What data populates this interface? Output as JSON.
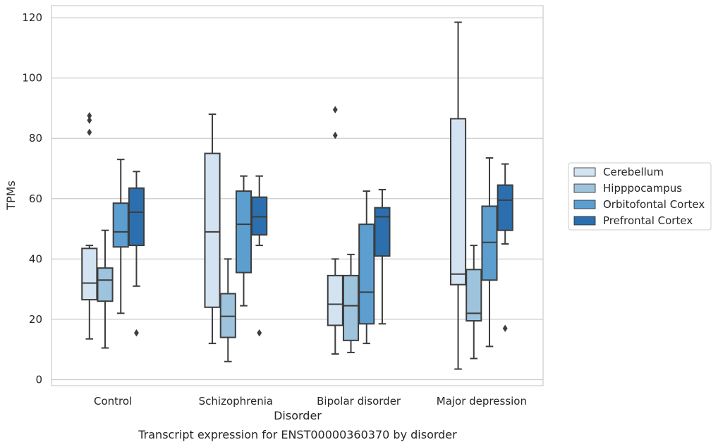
{
  "chart_data": {
    "type": "boxplot",
    "caption": "Transcript expression for ENST00000360370 by disorder",
    "xlabel": "Disorder",
    "ylabel": "TPMs",
    "ylim": [
      -2,
      124
    ],
    "yticks": [
      0,
      20,
      40,
      60,
      80,
      100,
      120
    ],
    "grid": "horizontal",
    "legend_position": "right",
    "categories": [
      "Control",
      "Schizophrenia",
      "Bipolar disorder",
      "Major depression"
    ],
    "series": [
      {
        "name": "Cerebellum",
        "color": "#d4e3f1",
        "boxes": [
          {
            "whisker_low": 13.5,
            "q1": 26.5,
            "median": 32.0,
            "q3": 43.5,
            "whisker_high": 44.5,
            "outliers": [
              82.0,
              86.0,
              87.5
            ]
          },
          {
            "whisker_low": 12.0,
            "q1": 24.0,
            "median": 49.0,
            "q3": 75.0,
            "whisker_high": 88.0,
            "outliers": []
          },
          {
            "whisker_low": 8.5,
            "q1": 18.0,
            "median": 25.0,
            "q3": 34.5,
            "whisker_high": 40.0,
            "outliers": [
              81.0,
              89.5
            ]
          },
          {
            "whisker_low": 3.5,
            "q1": 31.5,
            "median": 35.0,
            "q3": 86.5,
            "whisker_high": 118.5,
            "outliers": []
          }
        ]
      },
      {
        "name": "Hipppocampus",
        "color": "#9ec3dc",
        "boxes": [
          {
            "whisker_low": 10.5,
            "q1": 26.0,
            "median": 33.0,
            "q3": 37.0,
            "whisker_high": 49.5,
            "outliers": []
          },
          {
            "whisker_low": 6.0,
            "q1": 14.0,
            "median": 21.0,
            "q3": 28.5,
            "whisker_high": 40.0,
            "outliers": []
          },
          {
            "whisker_low": 9.0,
            "q1": 13.0,
            "median": 24.5,
            "q3": 34.5,
            "whisker_high": 41.5,
            "outliers": []
          },
          {
            "whisker_low": 7.0,
            "q1": 19.5,
            "median": 22.0,
            "q3": 36.5,
            "whisker_high": 44.5,
            "outliers": []
          }
        ]
      },
      {
        "name": "Orbitofontal Cortex",
        "color": "#5b9ecf",
        "boxes": [
          {
            "whisker_low": 22.0,
            "q1": 44.0,
            "median": 49.0,
            "q3": 58.5,
            "whisker_high": 73.0,
            "outliers": []
          },
          {
            "whisker_low": 24.5,
            "q1": 35.5,
            "median": 51.5,
            "q3": 62.5,
            "whisker_high": 67.5,
            "outliers": []
          },
          {
            "whisker_low": 12.0,
            "q1": 18.5,
            "median": 29.0,
            "q3": 51.5,
            "whisker_high": 62.5,
            "outliers": []
          },
          {
            "whisker_low": 11.0,
            "q1": 33.0,
            "median": 45.5,
            "q3": 57.5,
            "whisker_high": 73.5,
            "outliers": []
          }
        ]
      },
      {
        "name": "Prefrontal Cortex",
        "color": "#2b6fae",
        "boxes": [
          {
            "whisker_low": 31.0,
            "q1": 44.5,
            "median": 55.5,
            "q3": 63.5,
            "whisker_high": 69.0,
            "outliers": [
              15.5
            ]
          },
          {
            "whisker_low": 44.5,
            "q1": 48.0,
            "median": 54.0,
            "q3": 60.5,
            "whisker_high": 67.5,
            "outliers": [
              15.5
            ]
          },
          {
            "whisker_low": 18.5,
            "q1": 41.0,
            "median": 54.0,
            "q3": 57.0,
            "whisker_high": 63.0,
            "outliers": []
          },
          {
            "whisker_low": 45.0,
            "q1": 49.5,
            "median": 59.5,
            "q3": 64.5,
            "whisker_high": 71.5,
            "outliers": [
              17.0
            ]
          }
        ]
      }
    ]
  }
}
